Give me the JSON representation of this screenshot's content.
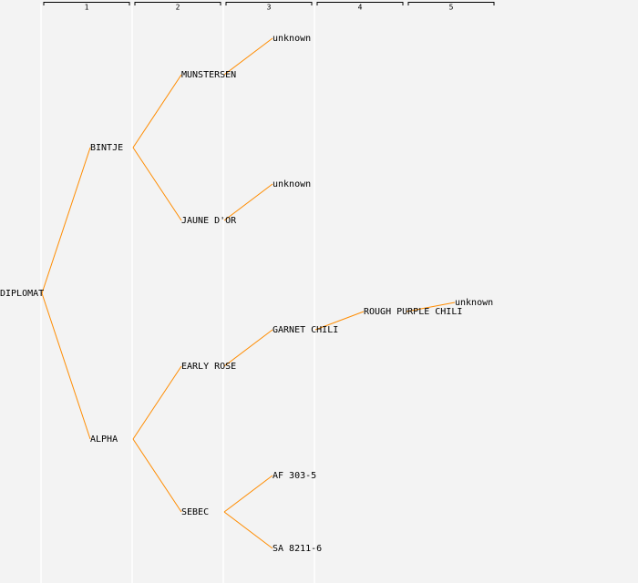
{
  "header": {
    "columns": [
      1,
      2,
      3,
      4,
      5
    ]
  },
  "tree": {
    "name": "DIPLOMAT",
    "children": [
      {
        "name": "BINTJE",
        "children": [
          {
            "name": "MUNSTERSEN",
            "children": [
              {
                "name": "unknown"
              }
            ]
          },
          {
            "name": "JAUNE D'OR",
            "children": [
              {
                "name": "unknown"
              }
            ]
          }
        ]
      },
      {
        "name": "ALPHA",
        "color": "#0000cc",
        "children": [
          {
            "name": "EARLY ROSE",
            "children": [
              {
                "name": "GARNET CHILI",
                "children": [
                  {
                    "name": "ROUGH PURPLE CHILI",
                    "children": [
                      {
                        "name": "unknown"
                      }
                    ]
                  }
                ]
              }
            ]
          },
          {
            "name": "SEBEC",
            "color": "#0000cc",
            "children": [
              {
                "name": "AF 303-5"
              },
              {
                "name": "SA 8211-6"
              }
            ]
          }
        ]
      }
    ]
  }
}
